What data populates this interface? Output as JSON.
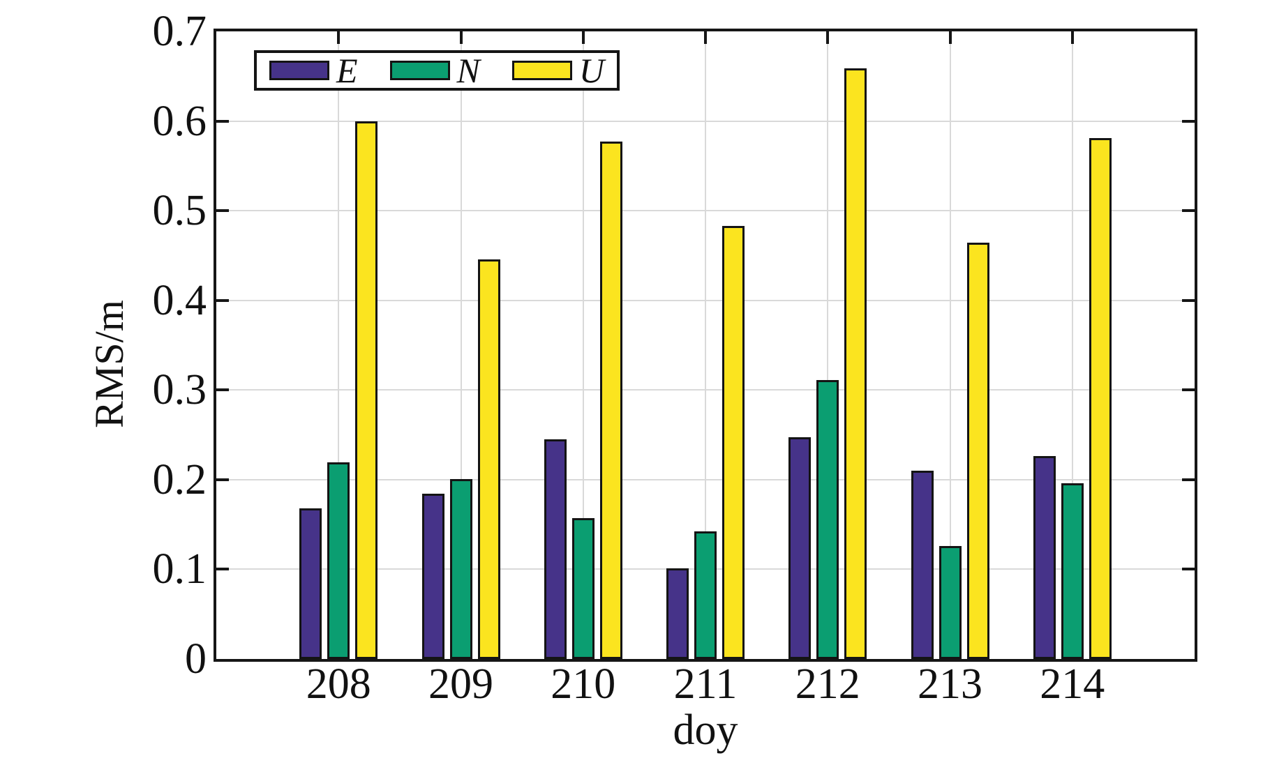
{
  "chart_data": {
    "type": "bar",
    "title": "",
    "xlabel": "doy",
    "ylabel": "RMS/m",
    "categories": [
      "208",
      "209",
      "210",
      "211",
      "212",
      "213",
      "214"
    ],
    "series": [
      {
        "name": "E",
        "color": "#463389",
        "values": [
          0.168,
          0.184,
          0.245,
          0.101,
          0.247,
          0.21,
          0.226
        ]
      },
      {
        "name": "N",
        "color": "#0b9e71",
        "values": [
          0.219,
          0.201,
          0.157,
          0.142,
          0.311,
          0.126,
          0.196
        ]
      },
      {
        "name": "U",
        "color": "#fbe41f",
        "values": [
          0.6,
          0.446,
          0.577,
          0.483,
          0.659,
          0.464,
          0.581
        ]
      }
    ],
    "ylim": [
      0,
      0.7
    ],
    "yticks": [
      "0",
      "0.1",
      "0.2",
      "0.3",
      "0.4",
      "0.5",
      "0.6",
      "0.7"
    ],
    "grid": true,
    "legend_position": "top-left",
    "frame_color": "#161616",
    "grid_color": "#d9d9d9"
  }
}
